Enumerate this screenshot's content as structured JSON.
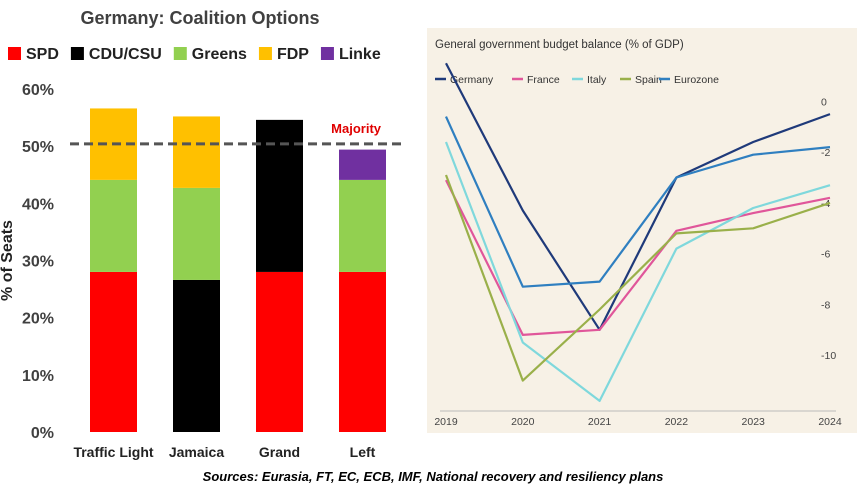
{
  "chart_data": [
    {
      "type": "bar",
      "stacked": true,
      "title": "Germany: Coalition Options",
      "ylabel": "% of Seats",
      "ylim": [
        0,
        60
      ],
      "yticks": [
        "0%",
        "10%",
        "20%",
        "30%",
        "40%",
        "50%",
        "60%"
      ],
      "categories": [
        "Traffic Light",
        "Jamaica",
        "Grand",
        "Left"
      ],
      "legend_position": "top",
      "series": [
        {
          "name": "SPD",
          "color": "#ff0000",
          "values": [
            28,
            0,
            28,
            28
          ]
        },
        {
          "name": "CDU/CSU",
          "color": "#000000",
          "values": [
            0,
            26.6,
            26.6,
            0
          ]
        },
        {
          "name": "Greens",
          "color": "#92d050",
          "values": [
            16.1,
            16.1,
            0,
            16.1
          ]
        },
        {
          "name": "FDP",
          "color": "#ffc000",
          "values": [
            12.5,
            12.5,
            0,
            0
          ]
        },
        {
          "name": "Linke",
          "color": "#7030a0",
          "values": [
            0,
            0,
            0,
            5.3
          ]
        }
      ],
      "reference_line": {
        "value": 50.4,
        "label": "Majority",
        "color": "#e00000"
      }
    },
    {
      "type": "line",
      "title": "General government budget balance (% of GDP)",
      "x": [
        "2019",
        "2020",
        "2021",
        "2022",
        "2023",
        "2024"
      ],
      "ylim": [
        -12,
        1
      ],
      "yticks": [
        "0",
        "-2",
        "-4",
        "-6",
        "-8",
        "-10"
      ],
      "legend_position": "top-left",
      "series": [
        {
          "name": "Germany",
          "color": "#1f3a7a",
          "values": [
            1.5,
            -4.3,
            -9.0,
            -3.0,
            -1.6,
            -0.5
          ]
        },
        {
          "name": "France",
          "color": "#e0569a",
          "values": [
            -3.1,
            -9.2,
            -9.0,
            -5.1,
            -4.4,
            -3.8
          ]
        },
        {
          "name": "Italy",
          "color": "#7fd8dc",
          "values": [
            -1.6,
            -9.5,
            -11.8,
            -5.8,
            -4.2,
            -3.3
          ]
        },
        {
          "name": "Spain",
          "color": "#9ab04a",
          "values": [
            -2.9,
            -11.0,
            -8.2,
            -5.2,
            -5.0,
            -4.0
          ]
        },
        {
          "name": "Eurozone",
          "color": "#2f7fc0",
          "values": [
            -0.6,
            -7.3,
            -7.1,
            -3.0,
            -2.1,
            -1.8
          ]
        }
      ]
    }
  ],
  "footer": "Sources: Eurasia, FT, EC, ECB, IMF, National recovery and resiliency plans"
}
